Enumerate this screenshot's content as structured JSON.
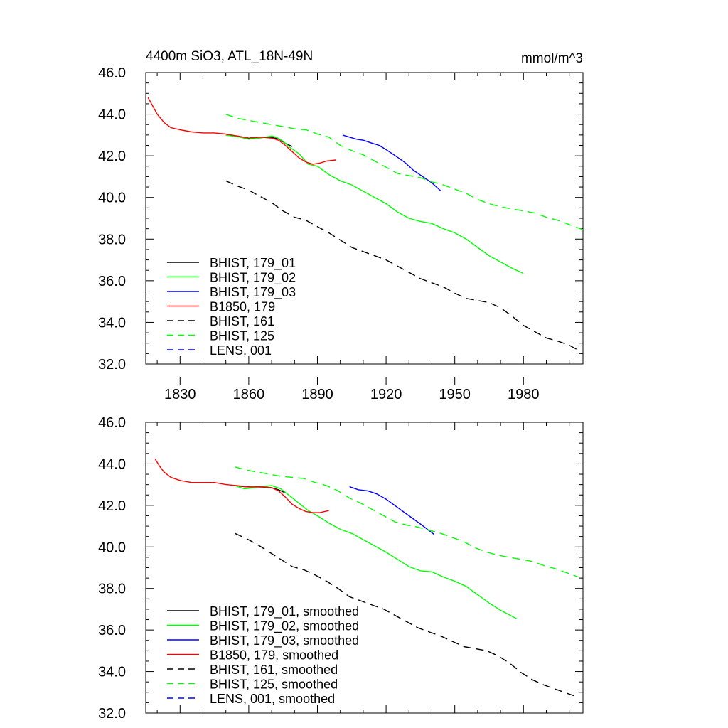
{
  "header": {
    "title": "4400m SiO3, ATL_18N-49N",
    "units": "mmol/m^3"
  },
  "chart_data": [
    {
      "type": "line",
      "panel": "top",
      "xlim": [
        1815,
        2006
      ],
      "ylim": [
        32.0,
        46.0
      ],
      "x_ticks": [
        1830,
        1860,
        1890,
        1920,
        1950,
        1980
      ],
      "x_tick_labels": [
        "1830",
        "1860",
        "1890",
        "1920",
        "1950",
        "1980"
      ],
      "y_ticks": [
        32.0,
        34.0,
        36.0,
        38.0,
        40.0,
        42.0,
        44.0,
        46.0
      ],
      "y_tick_labels": [
        "32.0",
        "34.0",
        "36.0",
        "38.0",
        "40.0",
        "42.0",
        "44.0",
        "46.0"
      ],
      "grid": false,
      "legend_position": "bottom-left",
      "series": [
        {
          "name": "BHIST, 179_01",
          "color": "#000000",
          "dash": "solid",
          "x": [
            1850,
            1855,
            1860,
            1865,
            1870,
            1873,
            1876,
            1879
          ],
          "y": [
            43.0,
            42.95,
            42.85,
            42.9,
            42.88,
            42.82,
            42.6,
            42.45
          ]
        },
        {
          "name": "BHIST, 179_02",
          "color": "#00ff00",
          "dash": "solid",
          "x": [
            1850,
            1856,
            1860,
            1865,
            1870,
            1872,
            1875,
            1878,
            1882,
            1886,
            1890,
            1895,
            1900,
            1905,
            1910,
            1915,
            1920,
            1925,
            1930,
            1935,
            1940,
            1945,
            1950,
            1955,
            1960,
            1965,
            1970,
            1975,
            1980
          ],
          "y": [
            43.0,
            42.9,
            42.8,
            42.85,
            42.95,
            42.9,
            42.7,
            42.4,
            42.1,
            41.6,
            41.5,
            41.1,
            40.8,
            40.6,
            40.3,
            40.0,
            39.7,
            39.3,
            39.0,
            38.85,
            38.75,
            38.5,
            38.3,
            38.0,
            37.6,
            37.2,
            36.9,
            36.6,
            36.35
          ]
        },
        {
          "name": "BHIST, 179_03",
          "color": "#0000ff",
          "dash": "solid",
          "x": [
            1901,
            1904,
            1907,
            1910,
            1914,
            1917,
            1920,
            1924,
            1928,
            1932,
            1936,
            1940,
            1944
          ],
          "y": [
            43.0,
            42.9,
            42.8,
            42.75,
            42.6,
            42.5,
            42.3,
            42.0,
            41.7,
            41.3,
            41.0,
            40.7,
            40.3
          ]
        },
        {
          "name": "B1850, 179",
          "color": "#ff0000",
          "dash": "solid",
          "x": [
            1816,
            1818,
            1820,
            1823,
            1826,
            1830,
            1835,
            1840,
            1845,
            1850,
            1855,
            1860,
            1865,
            1870,
            1873,
            1876,
            1879,
            1882,
            1885,
            1888,
            1891,
            1894,
            1898
          ],
          "y": [
            44.8,
            44.4,
            44.0,
            43.6,
            43.35,
            43.25,
            43.15,
            43.1,
            43.1,
            43.05,
            42.95,
            42.85,
            42.9,
            42.85,
            42.75,
            42.5,
            42.2,
            41.9,
            41.7,
            41.6,
            41.65,
            41.75,
            41.8
          ]
        },
        {
          "name": "BHIST, 161",
          "color": "#000000",
          "dash": "dashed",
          "x": [
            1850,
            1855,
            1860,
            1865,
            1870,
            1875,
            1880,
            1885,
            1890,
            1895,
            1900,
            1905,
            1910,
            1915,
            1920,
            1925,
            1930,
            1935,
            1940,
            1945,
            1950,
            1955,
            1960,
            1965,
            1970,
            1975,
            1980,
            1985,
            1990,
            1995,
            2000,
            2005
          ],
          "y": [
            40.8,
            40.55,
            40.35,
            40.05,
            39.75,
            39.35,
            39.05,
            38.9,
            38.6,
            38.3,
            37.95,
            37.6,
            37.4,
            37.2,
            37.0,
            36.7,
            36.4,
            36.1,
            35.9,
            35.7,
            35.4,
            35.15,
            35.05,
            34.95,
            34.7,
            34.3,
            33.85,
            33.55,
            33.25,
            33.1,
            32.9,
            32.6
          ]
        },
        {
          "name": "BHIST, 125",
          "color": "#00ff00",
          "dash": "dashed",
          "x": [
            1850,
            1855,
            1860,
            1865,
            1870,
            1875,
            1880,
            1885,
            1890,
            1895,
            1900,
            1905,
            1910,
            1915,
            1920,
            1925,
            1930,
            1935,
            1940,
            1945,
            1950,
            1955,
            1960,
            1965,
            1970,
            1975,
            1980,
            1985,
            1990,
            1995,
            2000,
            2006
          ],
          "y": [
            44.0,
            43.8,
            43.7,
            43.6,
            43.5,
            43.4,
            43.3,
            43.25,
            43.05,
            42.9,
            42.5,
            42.25,
            42.05,
            41.75,
            41.45,
            41.15,
            41.05,
            40.95,
            40.75,
            40.6,
            40.4,
            40.2,
            39.9,
            39.7,
            39.55,
            39.45,
            39.35,
            39.25,
            39.05,
            38.9,
            38.7,
            38.45
          ]
        },
        {
          "name": "LENS, 001",
          "color": "#0000ff",
          "dash": "dashed",
          "x": [],
          "y": []
        }
      ]
    },
    {
      "type": "line",
      "panel": "bottom",
      "xlim": [
        1815,
        2006
      ],
      "ylim": [
        32.0,
        46.0
      ],
      "x_ticks": [
        1830,
        1860,
        1890,
        1920,
        1950,
        1980
      ],
      "y_ticks": [
        32.0,
        34.0,
        36.0,
        38.0,
        40.0,
        42.0,
        44.0,
        46.0
      ],
      "y_tick_labels": [
        "32.0",
        "34.0",
        "36.0",
        "38.0",
        "40.0",
        "42.0",
        "44.0",
        "46.0"
      ],
      "grid": false,
      "legend_position": "bottom-left",
      "series": [
        {
          "name": "BHIST, 179_01, smoothed",
          "color": "#000000",
          "dash": "solid",
          "x": [
            1854,
            1858,
            1862,
            1866,
            1870,
            1873,
            1876
          ],
          "y": [
            42.95,
            42.9,
            42.88,
            42.88,
            42.85,
            42.75,
            42.6
          ]
        },
        {
          "name": "BHIST, 179_02, smoothed",
          "color": "#00ff00",
          "dash": "solid",
          "x": [
            1854,
            1858,
            1862,
            1866,
            1870,
            1874,
            1878,
            1882,
            1886,
            1890,
            1895,
            1900,
            1905,
            1910,
            1915,
            1920,
            1925,
            1930,
            1935,
            1940,
            1945,
            1950,
            1955,
            1960,
            1965,
            1970,
            1977
          ],
          "y": [
            42.95,
            42.8,
            42.85,
            42.9,
            42.95,
            42.8,
            42.45,
            42.1,
            41.75,
            41.5,
            41.15,
            40.85,
            40.65,
            40.35,
            40.05,
            39.75,
            39.4,
            39.05,
            38.85,
            38.8,
            38.55,
            38.35,
            38.1,
            37.7,
            37.3,
            36.95,
            36.55
          ]
        },
        {
          "name": "BHIST, 179_03, smoothed",
          "color": "#0000ff",
          "dash": "solid",
          "x": [
            1904,
            1908,
            1912,
            1916,
            1920,
            1925,
            1930,
            1935,
            1941
          ],
          "y": [
            42.9,
            42.75,
            42.7,
            42.55,
            42.3,
            41.9,
            41.5,
            41.1,
            40.6
          ]
        },
        {
          "name": "B1850, 179, smoothed",
          "color": "#ff0000",
          "dash": "solid",
          "x": [
            1819,
            1821,
            1823,
            1826,
            1830,
            1835,
            1840,
            1845,
            1850,
            1855,
            1860,
            1865,
            1870,
            1873,
            1876,
            1879,
            1882,
            1885,
            1888,
            1891,
            1895
          ],
          "y": [
            44.25,
            43.9,
            43.6,
            43.35,
            43.2,
            43.1,
            43.1,
            43.1,
            43.0,
            42.95,
            42.88,
            42.9,
            42.85,
            42.7,
            42.4,
            42.05,
            41.85,
            41.7,
            41.65,
            41.65,
            41.75
          ]
        },
        {
          "name": "BHIST, 161, smoothed",
          "color": "#000000",
          "dash": "dashed",
          "x": [
            1854,
            1859,
            1864,
            1869,
            1874,
            1879,
            1884,
            1889,
            1894,
            1899,
            1904,
            1909,
            1914,
            1919,
            1924,
            1929,
            1934,
            1939,
            1944,
            1949,
            1954,
            1959,
            1964,
            1969,
            1974,
            1979,
            1984,
            1989,
            1994,
            1999,
            2003
          ],
          "y": [
            40.65,
            40.4,
            40.1,
            39.75,
            39.4,
            39.05,
            38.9,
            38.65,
            38.35,
            38.0,
            37.6,
            37.4,
            37.2,
            37.0,
            36.7,
            36.4,
            36.1,
            35.9,
            35.7,
            35.45,
            35.2,
            35.1,
            35.0,
            34.75,
            34.4,
            33.95,
            33.6,
            33.35,
            33.15,
            32.95,
            32.8
          ]
        },
        {
          "name": "BHIST, 125, smoothed",
          "color": "#00ff00",
          "dash": "dashed",
          "x": [
            1854,
            1859,
            1864,
            1869,
            1874,
            1879,
            1884,
            1889,
            1894,
            1899,
            1904,
            1909,
            1914,
            1919,
            1924,
            1929,
            1934,
            1939,
            1944,
            1949,
            1954,
            1959,
            1964,
            1969,
            1974,
            1979,
            1984,
            1989,
            1994,
            1999,
            2004
          ],
          "y": [
            43.85,
            43.7,
            43.6,
            43.5,
            43.4,
            43.35,
            43.3,
            43.1,
            42.95,
            42.7,
            42.35,
            42.1,
            41.8,
            41.5,
            41.2,
            41.05,
            40.95,
            40.8,
            40.65,
            40.45,
            40.25,
            39.95,
            39.75,
            39.6,
            39.5,
            39.4,
            39.3,
            39.1,
            38.95,
            38.75,
            38.55
          ]
        },
        {
          "name": "LENS, 001, smoothed",
          "color": "#0000ff",
          "dash": "dashed",
          "x": [],
          "y": []
        }
      ]
    }
  ]
}
